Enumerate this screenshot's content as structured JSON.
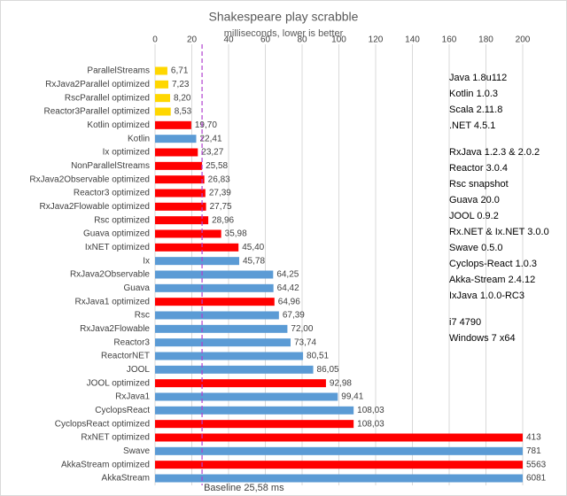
{
  "chart_data": {
    "type": "hbar",
    "title": "Shakespeare play scrabble",
    "subtitle": "milliseconds, lower is better",
    "categories": [
      "ParallelStreams",
      "RxJava2Parallel optimized",
      "RscParallel optimized",
      "Reactor3Parallel optimized",
      "Kotlin optimized",
      "Kotlin",
      "Ix optimized",
      "NonParallelStreams",
      "RxJava2Observable optimized",
      "Reactor3 optimized",
      "RxJava2Flowable optimized",
      "Rsc optimized",
      "Guava optimized",
      "IxNET optimized",
      "Ix",
      "RxJava2Observable",
      "Guava",
      "RxJava1 optimized",
      "Rsc",
      "RxJava2Flowable",
      "Reactor3",
      "ReactorNET",
      "JOOL",
      "JOOL optimized",
      "RxJava1",
      "CyclopsReact",
      "CyclopsReact optimized",
      "RxNET optimized",
      "Swave",
      "AkkaStream optimized",
      "AkkaStream"
    ],
    "values": [
      6.71,
      7.23,
      8.2,
      8.53,
      19.7,
      22.41,
      23.27,
      25.58,
      26.83,
      27.39,
      27.75,
      28.96,
      35.98,
      45.4,
      45.78,
      64.25,
      64.42,
      64.96,
      67.39,
      72.0,
      73.74,
      80.51,
      86.05,
      92.98,
      99.41,
      108.03,
      108.03,
      413,
      781,
      5563,
      6081
    ],
    "value_labels": [
      "6,71",
      "7,23",
      "8,20",
      "8,53",
      "19,70",
      "22,41",
      "23,27",
      "25,58",
      "26,83",
      "27,39",
      "27,75",
      "28,96",
      "35,98",
      "45,40",
      "45,78",
      "64,25",
      "64,42",
      "64,96",
      "67,39",
      "72,00",
      "73,74",
      "80,51",
      "86,05",
      "92,98",
      "99,41",
      "108,03",
      "108,03",
      "413",
      "781",
      "5563",
      "6081"
    ],
    "colors": [
      "#ffd700",
      "#ffd700",
      "#ffd700",
      "#ffd700",
      "#ff0000",
      "#5b9bd5",
      "#ff0000",
      "#ff0000",
      "#ff0000",
      "#ff0000",
      "#ff0000",
      "#ff0000",
      "#ff0000",
      "#ff0000",
      "#5b9bd5",
      "#5b9bd5",
      "#5b9bd5",
      "#ff0000",
      "#5b9bd5",
      "#5b9bd5",
      "#5b9bd5",
      "#5b9bd5",
      "#5b9bd5",
      "#ff0000",
      "#5b9bd5",
      "#5b9bd5",
      "#ff0000",
      "#ff0000",
      "#5b9bd5",
      "#ff0000",
      "#5b9bd5"
    ],
    "xlim": [
      0,
      200
    ],
    "xticks": [
      0,
      20,
      40,
      60,
      80,
      100,
      120,
      140,
      160,
      180,
      200
    ],
    "grid": true,
    "baseline": {
      "value": 25.58,
      "label": "Baseline 25,58 ms",
      "color": "#b040d0"
    },
    "notes": [
      [
        "Java 1.8u112",
        "Kotlin 1.0.3",
        "Scala 2.11.8",
        ".NET 4.5.1"
      ],
      [
        "RxJava 1.2.3 & 2.0.2",
        "Reactor 3.0.4",
        "Rsc snapshot",
        "Guava 20.0",
        "JOOL 0.9.2",
        "Rx.NET & Ix.NET 3.0.0",
        "Swave 0.5.0",
        "Cyclops-React 1.0.3",
        "Akka-Stream 2.4.12",
        "IxJava 1.0.0-RC3"
      ],
      [
        "i7 4790",
        "Windows 7 x64"
      ]
    ]
  }
}
